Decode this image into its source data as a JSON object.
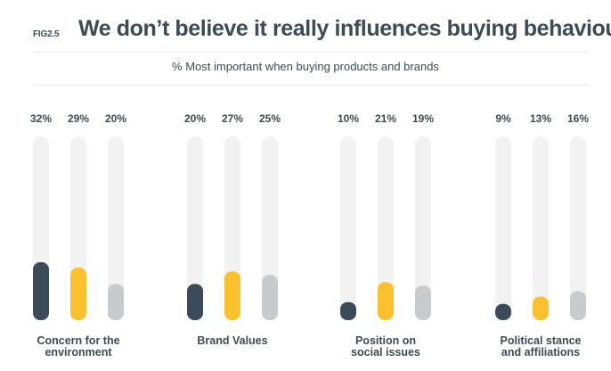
{
  "figure": {
    "label": "FIG2.5",
    "title": "We don’t believe it really influences buying behaviour",
    "subtitle": "% Most important when buying products and brands"
  },
  "colors": {
    "series_dark": "#3c4b5a",
    "series_yellow": "#fbc02d",
    "series_grey": "#c8cbce",
    "track": "#f2f2f2",
    "text": "#3d4a57"
  },
  "chart_data": {
    "type": "bar",
    "title": "We don’t believe it really influences buying behaviour",
    "subtitle": "% Most important when buying products and brands",
    "categories": [
      [
        "Concern for the",
        "environment"
      ],
      [
        "Brand Values"
      ],
      [
        "Position on",
        "social issues"
      ],
      [
        "Political stance",
        "and affiliations"
      ]
    ],
    "series": [
      {
        "color": "#3c4b5a",
        "values": [
          32,
          20,
          10,
          9
        ],
        "labels": [
          "32%",
          "20%",
          "10%",
          "9%"
        ]
      },
      {
        "color": "#fbc02d",
        "values": [
          29,
          27,
          21,
          13
        ],
        "labels": [
          "29%",
          "27%",
          "21%",
          "13%"
        ]
      },
      {
        "color": "#c8cbce",
        "values": [
          20,
          25,
          19,
          16
        ],
        "labels": [
          "20%",
          "25%",
          "19%",
          "16%"
        ]
      }
    ],
    "ylim": [
      0,
      100
    ],
    "grid": false,
    "legend": "none"
  }
}
